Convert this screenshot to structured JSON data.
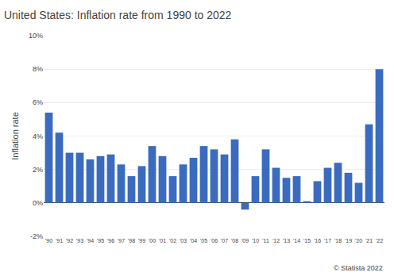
{
  "chart_data": {
    "type": "bar",
    "title": "United States: Inflation rate from 1990 to 2022",
    "y_label": "Inflation rate",
    "categories": [
      "'90",
      "'91",
      "'92",
      "'93",
      "'94",
      "'95",
      "'96",
      "'97",
      "'98",
      "'99",
      "'00",
      "'01",
      "'02",
      "'03",
      "'04",
      "'05",
      "'06",
      "'07",
      "'08",
      "'09",
      "'10",
      "'11",
      "'12",
      "'13",
      "'14",
      "'15",
      "'16",
      "'17",
      "'18",
      "'19",
      "'20",
      "'21",
      "'22"
    ],
    "values": [
      5.4,
      4.2,
      3.0,
      3.0,
      2.6,
      2.8,
      2.9,
      2.3,
      1.6,
      2.2,
      3.4,
      2.8,
      1.6,
      2.3,
      2.7,
      3.4,
      3.2,
      2.9,
      3.8,
      -0.4,
      1.6,
      3.2,
      2.1,
      1.5,
      1.6,
      0.1,
      1.3,
      2.1,
      2.4,
      1.8,
      1.2,
      4.7,
      8.0
    ],
    "color": "#3a6bbf",
    "ylim": [
      -2,
      10
    ],
    "yticks": [
      {
        "value": -2,
        "label": "-2%"
      },
      {
        "value": 0,
        "label": "0%"
      },
      {
        "value": 2,
        "label": "2%"
      },
      {
        "value": 4,
        "label": "4%"
      },
      {
        "value": 6,
        "label": "6%"
      },
      {
        "value": 8,
        "label": "8%"
      },
      {
        "value": 10,
        "label": "10%"
      }
    ],
    "grid": true,
    "annotations": [
      {
        "text": "© Statista 2022"
      }
    ]
  }
}
